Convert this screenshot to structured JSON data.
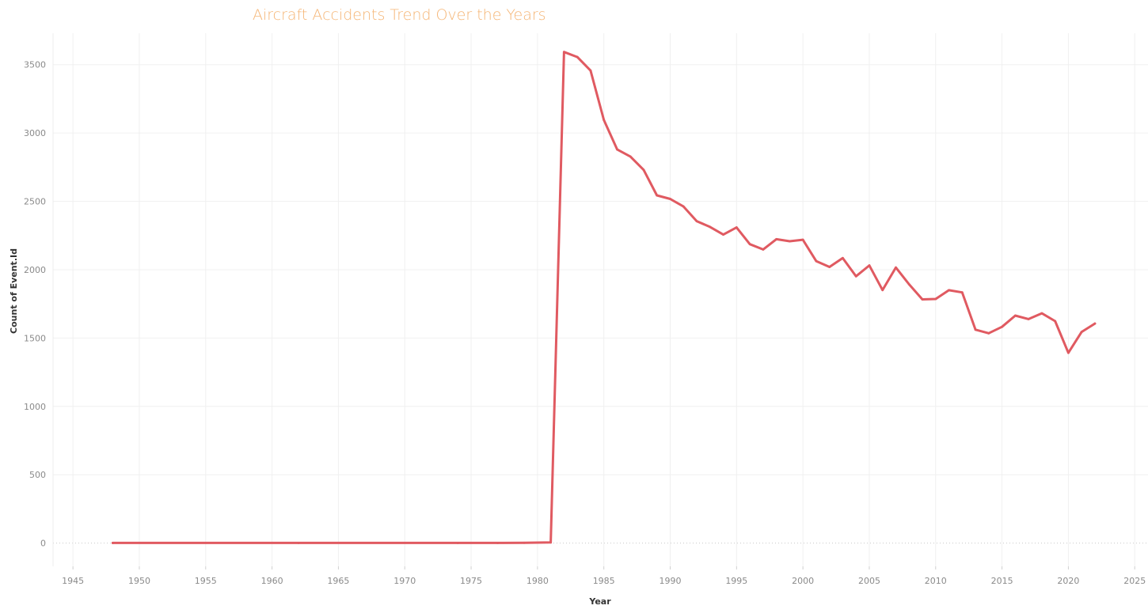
{
  "chart_data": {
    "type": "line",
    "title": "Aircraft Accidents Trend Over the Years",
    "xlabel": "Year",
    "ylabel": "Count of Event.Id",
    "xlim": [
      1943.5,
      2026
    ],
    "ylim": [
      -170,
      3730
    ],
    "xticks": [
      1945,
      1950,
      1955,
      1960,
      1965,
      1970,
      1975,
      1980,
      1985,
      1990,
      1995,
      2000,
      2005,
      2010,
      2015,
      2020,
      2025
    ],
    "yticks": [
      0,
      500,
      1000,
      1500,
      2000,
      2500,
      3000,
      3500
    ],
    "grid": true,
    "legend": "none",
    "series": [
      {
        "color": "#e05a61",
        "x": [
          1948,
          1962,
          1974,
          1977,
          1979,
          1981,
          1982,
          1983,
          1984,
          1985,
          1986,
          1987,
          1988,
          1989,
          1990,
          1991,
          1992,
          1993,
          1994,
          1995,
          1996,
          1997,
          1998,
          1999,
          2000,
          2001,
          2002,
          2003,
          2004,
          2005,
          2006,
          2007,
          2008,
          2009,
          2010,
          2011,
          2012,
          2013,
          2014,
          2015,
          2016,
          2017,
          2018,
          2019,
          2020,
          2021,
          2022
        ],
        "y": [
          1,
          1,
          1,
          1,
          2,
          5,
          3593,
          3556,
          3457,
          3096,
          2880,
          2828,
          2730,
          2544,
          2518,
          2462,
          2355,
          2313,
          2257,
          2309,
          2187,
          2148,
          2223,
          2208,
          2219,
          2063,
          2020,
          2085,
          1952,
          2031,
          1851,
          2016,
          1893,
          1783,
          1786,
          1850,
          1834,
          1561,
          1535,
          1582,
          1664,
          1639,
          1681,
          1624,
          1392,
          1545,
          1606
        ]
      }
    ]
  }
}
